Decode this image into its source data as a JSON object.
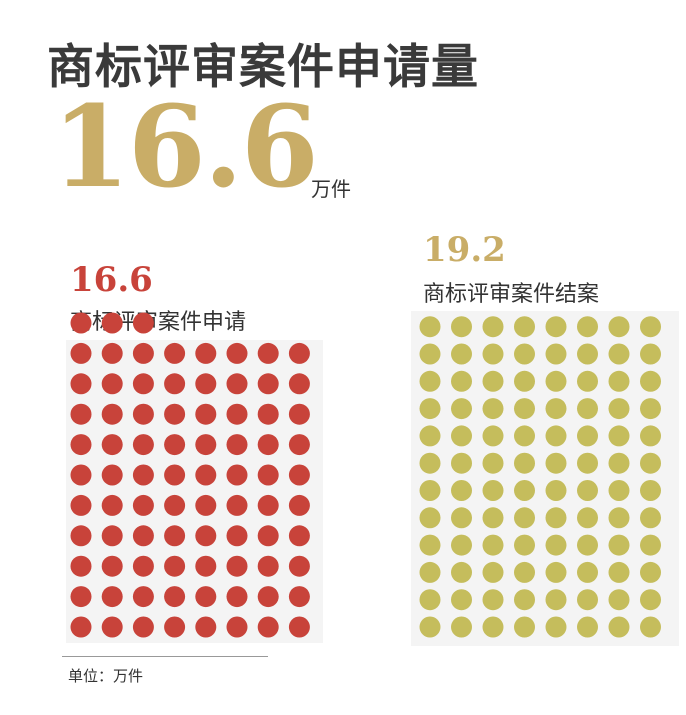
{
  "header": {
    "title": "商标评审案件申请量",
    "big_value": "16.6",
    "big_unit": "万件"
  },
  "footer": {
    "unit_note": "单位：万件"
  },
  "colors": {
    "application": "#c8433a",
    "closed": "#c5bd5c",
    "accent_gold": "#c9ad67"
  },
  "chart_data": {
    "type": "dot-matrix",
    "unit": "万件",
    "series": [
      {
        "name": "商标评审案件申请",
        "value_label": "16.6",
        "value": 16.6,
        "dot_count": 83,
        "columns": 8
      },
      {
        "name": "商标评审案件结案",
        "value_label": "19.2",
        "value": 19.2,
        "dot_count": 96,
        "columns": 8
      }
    ]
  }
}
